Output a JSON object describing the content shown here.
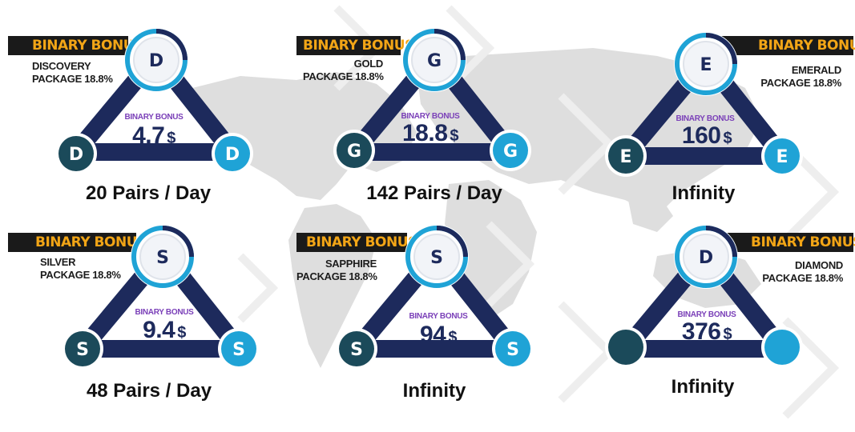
{
  "cards": [
    {
      "tag": "BINARY BONUS",
      "package": [
        "DISCOVERY",
        "PACKAGE 18.8%"
      ],
      "top_letter": "D",
      "left_letter": "D",
      "right_letter": "D",
      "bonus_label": "BINARY BONUS",
      "amount": "4.7",
      "currency": "$",
      "caption": "20 Pairs / Day"
    },
    {
      "tag": "BINARY BONUS",
      "package": [
        "GOLD",
        "PACKAGE 18.8%"
      ],
      "top_letter": "G",
      "left_letter": "G",
      "right_letter": "G",
      "bonus_label": "BINARY BONUS",
      "amount": "18.8",
      "currency": "$",
      "caption": "142 Pairs / Day"
    },
    {
      "tag": "BINARY BONUS",
      "package": [
        "EMERALD",
        "PACKAGE 18.8%"
      ],
      "top_letter": "E",
      "left_letter": "E",
      "right_letter": "E",
      "bonus_label": "BINARY BONUS",
      "amount": "160",
      "currency": "$",
      "caption": "Infinity"
    },
    {
      "tag": "BINARY BONUS",
      "package": [
        "SILVER",
        "PACKAGE 18.8%"
      ],
      "top_letter": "S",
      "left_letter": "S",
      "right_letter": "S",
      "bonus_label": "BINARY BONUS",
      "amount": "9.4",
      "currency": "$",
      "caption": "48 Pairs / Day"
    },
    {
      "tag": "BINARY BONUS",
      "package": [
        "SAPPHIRE",
        "PACKAGE 18.8%"
      ],
      "top_letter": "S",
      "left_letter": "S",
      "right_letter": "S",
      "bonus_label": "BINARY BONUS",
      "amount": "94",
      "currency": "$",
      "caption": "Infinity"
    },
    {
      "tag": "BINARY BONUS",
      "package": [
        "DIAMOND",
        "PACKAGE 18.8%"
      ],
      "top_letter": "D",
      "left_letter": "",
      "right_letter": "",
      "bonus_label": "BINARY BONUS",
      "amount": "376",
      "currency": "$",
      "caption": "Infinity"
    }
  ],
  "colors": {
    "navy": "#1d2a5c",
    "cyan": "#1fa3d6",
    "teal_dark": "#1b4a5a",
    "tag_bg": "#1a1a1a",
    "tag_text": "#f2a516",
    "purple": "#7a3fb8",
    "map": "#d6d6d6"
  }
}
